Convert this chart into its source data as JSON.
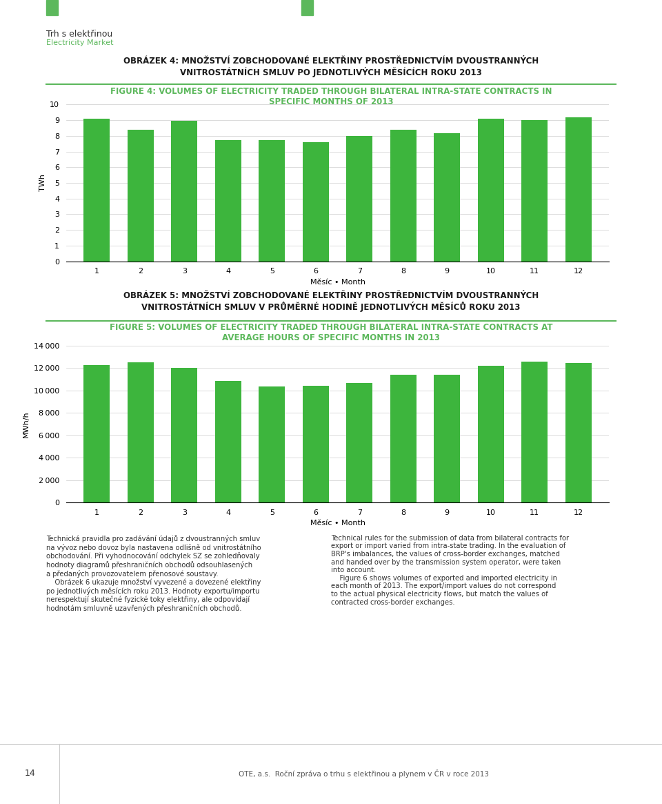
{
  "chart1": {
    "title_cz": "OBRÁZEK 4: MNOŽSTVÍ ZOBCHODOVANÉ ELEKTŘINY PROSTŘEDNICTVÍM DVOUSTRANNÝCH\nVNITROSTÁTNÍCH SMLUV PO JEDNOTLIVÝCH MĚSÍCÍCH ROKU 2013",
    "title_en": "FIGURE 4: VOLUMES OF ELECTRICITY TRADED THROUGH BILATERAL INTRA-STATE CONTRACTS IN\nSPECIFIC MONTHS OF 2013",
    "xlabel": "Měsíc • Month",
    "ylabel": "TWh",
    "values": [
      9.1,
      8.4,
      8.95,
      7.75,
      7.75,
      7.6,
      8.0,
      8.4,
      8.15,
      9.1,
      9.0,
      9.2
    ],
    "ylim": [
      0,
      10
    ],
    "yticks": [
      0,
      1,
      2,
      3,
      4,
      5,
      6,
      7,
      8,
      9,
      10
    ]
  },
  "chart2": {
    "title_cz": "OBRÁZEK 5: MNOŽSTVÍ ZOBCHODOVANÉ ELEKTŘINY PROSTŘEDNICTVÍM DVOUSTRANNÝCH\nVNITROSTÁTNÍCH SMLUV V PRŮMĚRNÉ HODINĚ JEDNOTLIVÝCH MĚSÍCŮ ROKU 2013",
    "title_en": "FIGURE 5: VOLUMES OF ELECTRICITY TRADED THROUGH BILATERAL INTRA-STATE CONTRACTS AT\nAVERAGE HOURS OF SPECIFIC MONTHS IN 2013",
    "xlabel": "Měsíc • Month",
    "ylabel": "MWh/h",
    "values": [
      12250,
      12500,
      12050,
      10850,
      10350,
      10450,
      10650,
      11400,
      11400,
      12200,
      12550,
      12450
    ],
    "ylim": [
      0,
      14000
    ],
    "yticks": [
      0,
      2000,
      4000,
      6000,
      8000,
      10000,
      12000,
      14000
    ]
  },
  "text_left_cz": "Technická pravidla pro zadávání údajů z dvoustranných smluv\nna vývoz nebo dovoz byla nastavena odlišně od vnitrostátního\nobchodování. Při vyhodnocování odchylek SZ se zohledňovaly\nhodnoty diagramů přeshraničních obchodů odsouhlasených\na předaných provozovatelem přenosové soustavy.\n    Obrázek 6 ukazuje množství vyvezené a dovezené elektřiny\npo jednotlivých měsících roku 2013. Hodnoty exportu/importu\nnerespektují skutečné fyzické toky elektřiny, ale odpovídají\nhodnotám smluvně uzavřených přeshraničních obchodů.",
  "text_right_en": "Technical rules for the submission of data from bilateral contracts for\nexport or import varied from intra-state trading. In the evaluation of\nBRP's imbalances, the values of cross-border exchanges, matched\nand handed over by the transmission system operator, were taken\ninto account.\n    Figure 6 shows volumes of exported and imported electricity in\neach month of 2013. The export/import values do not correspond\nto the actual physical electricity flows, but match the values of\ncontracted cross-border exchanges.",
  "header_title": "Trh s elektřinou",
  "header_subtitle": "Electricity Market",
  "footer_page": "14",
  "footer_text": "OTE, a.s.  Roční zpráva o trhu s elektřinou a plynem v ČR v roce 2013",
  "bg_color": "#ffffff",
  "bar_color": "#3db53d",
  "title_cz_color": "#1a1a1a",
  "title_en_color": "#5cb85c",
  "separator_color": "#5cb85c",
  "header_green": "#5cb85c",
  "grid_color": "#cccccc",
  "categories": [
    "1",
    "2",
    "3",
    "4",
    "5",
    "6",
    "7",
    "8",
    "9",
    "10",
    "11",
    "12"
  ]
}
